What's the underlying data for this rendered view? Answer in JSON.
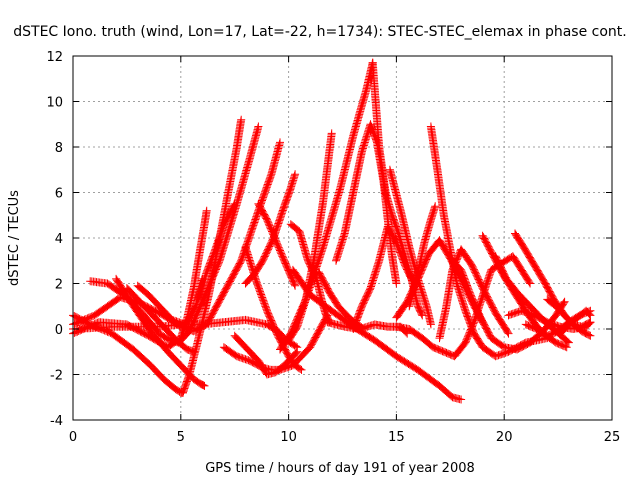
{
  "chart_data": {
    "type": "scatter",
    "title": "dSTEC Iono. truth (wind, Lon=17, Lat=-22, h=1734): STEC-STEC_elemax in phase cont.",
    "xlabel": "GPS time / hours of day 191 of year 2008",
    "ylabel": "dSTEC  / TECUs",
    "xlim": [
      0,
      25
    ],
    "ylim": [
      -4,
      12
    ],
    "xticks": [
      "0",
      "5",
      "10",
      "15",
      "20",
      "25"
    ],
    "yticks": [
      "-4",
      "-2",
      "0",
      "2",
      "4",
      "6",
      "8",
      "10",
      "12"
    ],
    "grid": true,
    "marker": "+",
    "color": "#ff0000",
    "series": [
      {
        "x": [
          0.0,
          0.8,
          1.8,
          2.8,
          3.6,
          4.2,
          4.7,
          5.0,
          5.1
        ],
        "y": [
          0.6,
          0.2,
          -0.2,
          -0.9,
          -1.6,
          -2.2,
          -2.6,
          -2.8,
          -2.8
        ]
      },
      {
        "x": [
          5.1,
          5.4,
          5.8,
          6.3,
          6.8,
          7.2,
          7.6,
          7.8
        ],
        "y": [
          -2.8,
          -2.0,
          -0.5,
          1.5,
          4.0,
          6.0,
          8.0,
          9.2
        ]
      },
      {
        "x": [
          0.0,
          1.2,
          2.5,
          3.5,
          4.4,
          5.0,
          5.3,
          5.6,
          5.9,
          6.1,
          6.2
        ],
        "y": [
          -0.2,
          0.3,
          0.2,
          -0.3,
          -0.8,
          -0.4,
          0.5,
          1.8,
          3.5,
          4.6,
          5.2
        ]
      },
      {
        "x": [
          0.8,
          1.6,
          2.5,
          3.3,
          4.0,
          4.5,
          4.9,
          5.4,
          6.0,
          6.8,
          7.6,
          8.2,
          8.6
        ],
        "y": [
          2.1,
          2.0,
          1.4,
          0.6,
          -0.2,
          -0.5,
          -0.6,
          -0.1,
          1.2,
          3.0,
          5.5,
          7.5,
          8.9
        ]
      },
      {
        "x": [
          0.0,
          1.0,
          2.2,
          3.2,
          4.2,
          5.0,
          5.6,
          6.2,
          7.0,
          7.8,
          8.6,
          9.2,
          9.6
        ],
        "y": [
          0.2,
          0.6,
          1.4,
          1.1,
          0.6,
          0.1,
          -0.1,
          0.2,
          1.6,
          3.0,
          5.2,
          6.8,
          8.2
        ]
      },
      {
        "x": [
          2.0,
          2.8,
          3.6,
          4.4,
          5.2,
          5.6,
          5.9,
          6.1
        ],
        "y": [
          2.2,
          1.0,
          -0.1,
          -1.0,
          -1.8,
          -2.2,
          -2.4,
          -2.5
        ]
      },
      {
        "x": [
          2.5,
          3.2,
          4.0,
          4.8,
          5.3,
          5.6
        ],
        "y": [
          1.8,
          1.1,
          0.3,
          -0.5,
          -0.9,
          -1.0
        ]
      },
      {
        "x": [
          3.0,
          3.5,
          4.0,
          4.6,
          5.2,
          5.7,
          6.0
        ],
        "y": [
          1.9,
          1.5,
          1.0,
          0.4,
          0.2,
          1.0,
          2.2
        ]
      },
      {
        "x": [
          0.0,
          2.0,
          4.0,
          5.0,
          6.0,
          7.0,
          8.0,
          9.0,
          9.5,
          9.9,
          10.4
        ],
        "y": [
          0.0,
          0.1,
          0.1,
          0.2,
          0.2,
          0.3,
          0.4,
          0.2,
          -0.1,
          -0.5,
          -0.8
        ]
      },
      {
        "x": [
          5.8,
          6.2,
          6.6,
          7.0,
          7.5
        ],
        "y": [
          1.3,
          2.5,
          3.5,
          4.6,
          5.5
        ]
      },
      {
        "x": [
          7.0,
          7.6,
          8.2,
          8.8,
          9.2,
          9.6,
          10.2,
          11.0,
          11.8
        ],
        "y": [
          -0.8,
          -1.2,
          -1.4,
          -1.7,
          -1.8,
          -1.8,
          -1.6,
          -0.8,
          0.6
        ]
      },
      {
        "x": [
          8.0,
          8.5,
          9.0,
          9.5,
          10.0,
          10.3,
          10.6
        ],
        "y": [
          3.6,
          2.1,
          0.8,
          -0.3,
          -1.2,
          -1.6,
          -1.8
        ]
      },
      {
        "x": [
          8.0,
          8.4,
          8.8,
          9.3,
          9.8,
          10.1,
          10.3
        ],
        "y": [
          2.0,
          2.4,
          3.0,
          4.0,
          5.4,
          6.2,
          6.8
        ]
      },
      {
        "x": [
          7.5,
          8.0,
          8.6,
          9.0,
          9.4,
          9.8,
          10.4
        ],
        "y": [
          -0.3,
          -0.8,
          -1.4,
          -2.0,
          -1.9,
          -1.6,
          -1.0
        ]
      },
      {
        "x": [
          8.6,
          9.0,
          9.4,
          9.8,
          10.3
        ],
        "y": [
          5.5,
          4.8,
          3.9,
          3.0,
          1.9
        ]
      },
      {
        "x": [
          9.6,
          10.1,
          10.8,
          11.6,
          12.4,
          13.0,
          13.6,
          13.9
        ],
        "y": [
          -0.9,
          -0.2,
          1.3,
          3.6,
          6.2,
          8.5,
          10.5,
          11.7
        ]
      },
      {
        "x": [
          10.1,
          10.5,
          10.9,
          11.3,
          11.5,
          11.7,
          11.9
        ],
        "y": [
          4.6,
          4.3,
          3.0,
          2.2,
          1.4,
          0.7,
          0.3
        ]
      },
      {
        "x": [
          10.0,
          10.4,
          10.8,
          11.2,
          11.6,
          12.0
        ],
        "y": [
          -0.5,
          0.1,
          1.3,
          3.2,
          5.6,
          8.6
        ]
      },
      {
        "x": [
          10.2,
          11.0,
          12.0,
          13.0,
          14.0,
          15.0,
          16.0,
          17.0,
          17.6,
          18.0
        ],
        "y": [
          2.6,
          1.5,
          0.8,
          0.1,
          -0.5,
          -1.2,
          -1.8,
          -2.5,
          -3.0,
          -3.1
        ]
      },
      {
        "x": [
          11.4,
          11.9,
          12.3,
          12.8,
          13.2,
          13.5
        ],
        "y": [
          2.5,
          1.6,
          1.0,
          0.5,
          0.2,
          0.0
        ]
      },
      {
        "x": [
          11.8,
          12.6,
          13.3,
          14.0,
          14.6,
          15.2,
          15.5
        ],
        "y": [
          0.3,
          0.1,
          0.0,
          0.2,
          0.1,
          0.1,
          -0.2
        ]
      },
      {
        "x": [
          12.2,
          12.6,
          13.0,
          13.4,
          13.8,
          14.1,
          14.4,
          14.6,
          14.8,
          15.0
        ],
        "y": [
          3.0,
          4.2,
          6.0,
          7.8,
          9.0,
          8.2,
          6.5,
          4.8,
          3.2,
          2.0
        ]
      },
      {
        "x": [
          13.0,
          13.4,
          13.8,
          14.2,
          14.6,
          15.0,
          15.4,
          15.8
        ],
        "y": [
          0.0,
          1.0,
          1.8,
          3.0,
          4.5,
          3.8,
          2.8,
          2.0
        ]
      },
      {
        "x": [
          13.9,
          14.2,
          14.5,
          14.8,
          15.1,
          15.4,
          15.7,
          16.0,
          16.2
        ],
        "y": [
          11.7,
          8.0,
          6.0,
          5.0,
          4.2,
          3.2,
          2.2,
          1.0,
          0.6
        ]
      },
      {
        "x": [
          14.7,
          15.2,
          15.6,
          16.0,
          16.4,
          16.6
        ],
        "y": [
          7.0,
          5.2,
          3.6,
          2.2,
          1.0,
          0.2
        ]
      },
      {
        "x": [
          15.0,
          15.6,
          16.2,
          16.7,
          17.2,
          17.7,
          18.2,
          18.6,
          19.4,
          20.4,
          21.2
        ],
        "y": [
          0.1,
          0.0,
          -0.4,
          -0.8,
          -1.0,
          -1.2,
          -0.6,
          0.3,
          2.6,
          3.2,
          2.0
        ]
      },
      {
        "x": [
          15.0,
          15.5,
          16.0,
          16.5,
          17.0,
          17.5,
          18.0,
          18.5,
          19.0
        ],
        "y": [
          0.5,
          1.2,
          2.2,
          3.3,
          3.9,
          3.1,
          2.2,
          1.2,
          0.3
        ]
      },
      {
        "x": [
          15.6,
          16.0,
          16.3,
          16.6,
          16.8
        ],
        "y": [
          1.0,
          2.5,
          3.8,
          4.8,
          5.4
        ]
      },
      {
        "x": [
          16.6,
          16.9,
          17.2,
          17.5,
          17.8,
          18.2,
          18.6,
          19.0,
          19.6,
          20.2,
          21.0,
          22.0
        ],
        "y": [
          8.9,
          7.0,
          5.0,
          3.5,
          2.0,
          0.8,
          -0.2,
          -0.8,
          -1.2,
          -1.0,
          -0.6,
          -0.4
        ]
      },
      {
        "x": [
          17.0,
          17.3,
          17.6,
          18.0,
          18.5,
          19.0,
          19.6,
          20.2
        ],
        "y": [
          -0.4,
          0.9,
          2.6,
          3.5,
          2.8,
          1.8,
          0.7,
          -0.2
        ]
      },
      {
        "x": [
          17.6,
          18.0,
          18.4,
          18.9,
          19.4,
          20.0,
          20.6,
          21.2,
          21.8,
          22.4,
          22.8
        ],
        "y": [
          3.0,
          2.6,
          1.6,
          0.5,
          -0.4,
          -0.8,
          -0.9,
          -0.6,
          -0.1,
          0.6,
          1.2
        ]
      },
      {
        "x": [
          19.0,
          19.5,
          20.0,
          20.6,
          21.2,
          21.8,
          22.4,
          22.9
        ],
        "y": [
          4.1,
          3.2,
          2.3,
          1.4,
          0.5,
          -0.2,
          -0.6,
          -0.8
        ]
      },
      {
        "x": [
          19.6,
          20.1,
          20.6,
          21.2,
          21.8,
          22.4,
          23.0
        ],
        "y": [
          3.2,
          2.2,
          1.6,
          1.0,
          0.4,
          -0.1,
          -0.6
        ]
      },
      {
        "x": [
          20.5,
          20.9,
          21.4,
          21.9,
          22.3,
          22.8,
          23.2,
          23.6,
          24.0
        ],
        "y": [
          4.2,
          3.6,
          2.8,
          2.0,
          1.3,
          0.6,
          0.2,
          -0.1,
          -0.3
        ]
      },
      {
        "x": [
          20.2,
          20.8,
          21.4,
          22.0,
          22.6,
          23.2,
          23.8,
          24.0
        ],
        "y": [
          0.6,
          0.8,
          0.6,
          0.3,
          0.1,
          0.0,
          0.1,
          0.3
        ]
      },
      {
        "x": [
          21.0,
          21.5,
          22.0,
          22.5,
          23.0,
          23.5,
          24.0
        ],
        "y": [
          0.2,
          0.0,
          -0.3,
          -0.1,
          0.3,
          0.6,
          0.8
        ]
      },
      {
        "x": [
          22.0,
          22.4,
          22.8,
          23.2,
          23.6,
          24.0
        ],
        "y": [
          1.3,
          1.0,
          0.6,
          0.2,
          0.1,
          0.3
        ]
      },
      {
        "x": [
          22.6,
          23.0,
          23.4,
          23.8,
          24.0
        ],
        "y": [
          -0.2,
          0.2,
          0.5,
          0.8,
          0.6
        ]
      }
    ]
  }
}
